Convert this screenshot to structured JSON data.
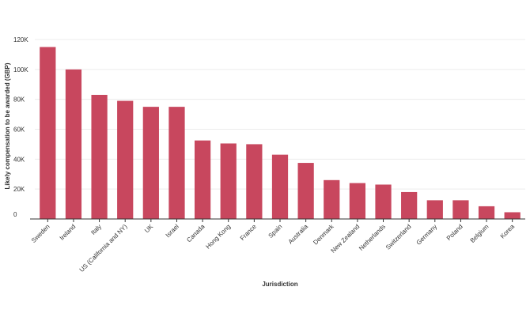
{
  "chart_data": {
    "type": "bar",
    "title": "",
    "xlabel": "Jurisdiction",
    "ylabel": "Likely compensation to be awarded (GBP)",
    "categories": [
      "Sweden",
      "Ireland",
      "Italy",
      "US (California and NY)",
      "UK",
      "Israel",
      "Canada",
      "Hong Kong",
      "France",
      "Spain",
      "Australia",
      "Denmark",
      "New Zealand",
      "Netherlands",
      "Switzerland",
      "Germany",
      "Poland",
      "Belgium",
      "Korea"
    ],
    "values": [
      115000,
      100000,
      83000,
      79000,
      75000,
      75000,
      52500,
      50500,
      50000,
      43000,
      37500,
      26000,
      24000,
      23000,
      18000,
      12500,
      12500,
      8500,
      4500
    ],
    "ylim": [
      0,
      120000
    ],
    "yticks": [
      0,
      20000,
      40000,
      60000,
      80000,
      100000,
      120000
    ],
    "ytick_labels": [
      "0",
      "20K",
      "40K",
      "60K",
      "80K",
      "100K",
      "120K"
    ],
    "grid": true,
    "legend": "none",
    "colors": {
      "bar": "#c8475e",
      "grid": "#ececec",
      "axis": "#333333",
      "text": "#333333"
    }
  }
}
